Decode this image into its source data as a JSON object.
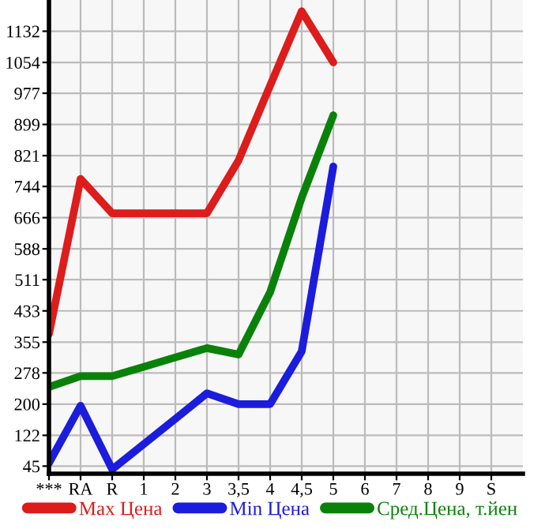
{
  "chart_data": {
    "type": "line",
    "categories": [
      "***",
      "RA",
      "R",
      "1",
      "2",
      "3",
      "3,5",
      "4",
      "4,5",
      "5",
      "6",
      "7",
      "8",
      "9",
      "S"
    ],
    "series": [
      {
        "name": "Max Цена",
        "color": "#dd1c1c",
        "values": [
          375,
          763,
          677,
          677,
          677,
          677,
          809,
          996,
          1182,
          1054,
          null,
          null,
          null,
          null,
          null
        ]
      },
      {
        "name": "Min Цена",
        "color": "#1c1cdd",
        "values": [
          53,
          196,
          37,
          100,
          163,
          227,
          200,
          200,
          332,
          794,
          null,
          null,
          null,
          null,
          null
        ]
      },
      {
        "name": "Сред.Цена, т.йен",
        "color": "#0a820a",
        "values": [
          243,
          270,
          270,
          293,
          317,
          340,
          324,
          480,
          716,
          922,
          null,
          null,
          null,
          null,
          null
        ]
      }
    ],
    "ylim": [
      26,
      1210
    ],
    "yticks": [
      45,
      122,
      200,
      278,
      355,
      433,
      511,
      588,
      666,
      744,
      821,
      899,
      977,
      1054,
      1132
    ],
    "grid": true,
    "legend": "bottom",
    "marker": "none",
    "line_style": "solid"
  }
}
